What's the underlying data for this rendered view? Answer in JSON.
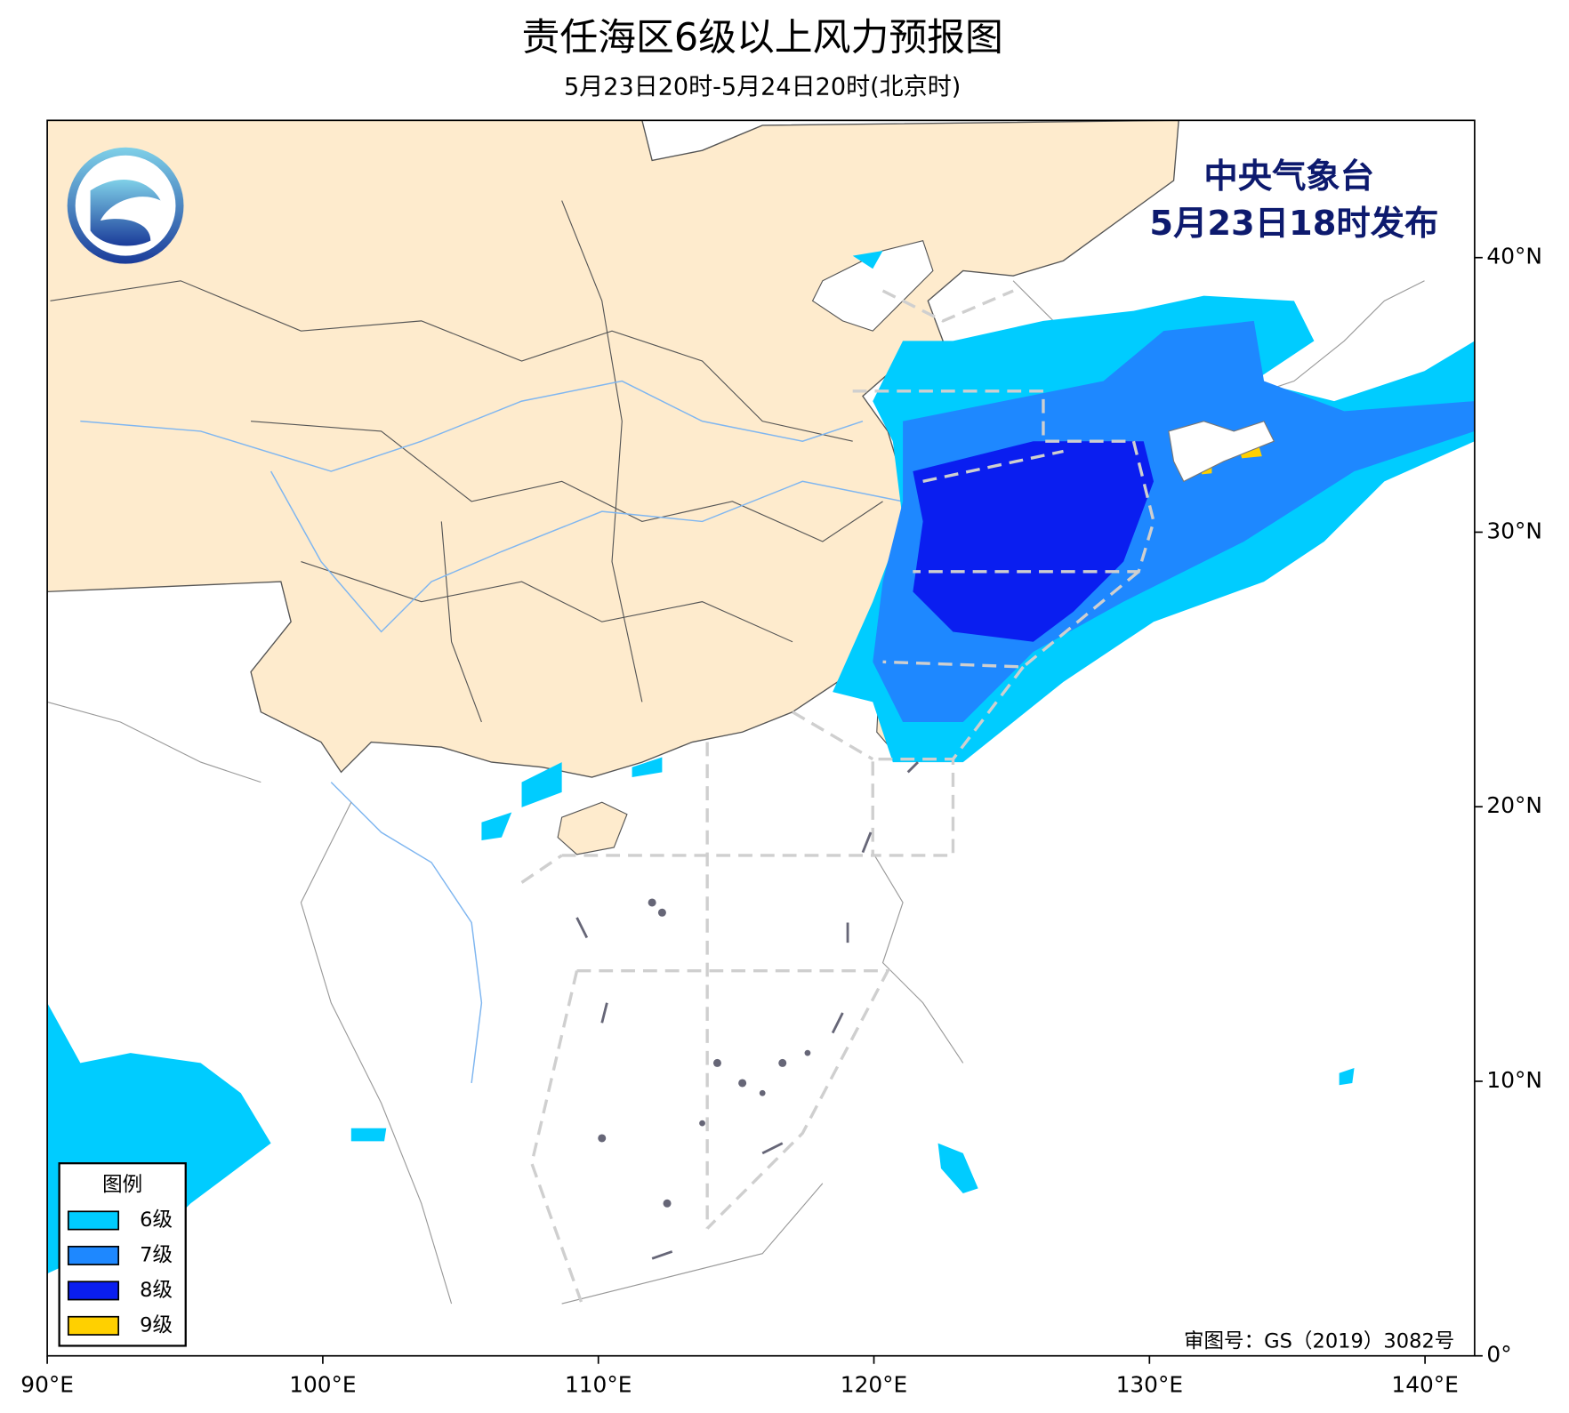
{
  "header": {
    "title": "责任海区6级以上风力预报图",
    "subtitle": "5月23日20时-5月24日20时(北京时)"
  },
  "issuer": {
    "agency": "中央气象台",
    "issued": "5月23日18时发布"
  },
  "approval": "审图号：GS（2019）3082号",
  "legend": {
    "title": "图例",
    "items": [
      {
        "label": "6级",
        "color": "#00ccff"
      },
      {
        "label": "7级",
        "color": "#1e88ff"
      },
      {
        "label": "8级",
        "color": "#0a1ef0"
      },
      {
        "label": "9级",
        "color": "#ffd000"
      }
    ]
  },
  "map": {
    "xlim": [
      90,
      141.8
    ],
    "ylim": [
      0,
      45
    ],
    "xticks": [
      {
        "value": 90,
        "label": "90°E"
      },
      {
        "value": 100,
        "label": "100°E"
      },
      {
        "value": 110,
        "label": "110°E"
      },
      {
        "value": 120,
        "label": "120°E"
      },
      {
        "value": 130,
        "label": "130°E"
      },
      {
        "value": 140,
        "label": "140°E"
      }
    ],
    "yticks": [
      {
        "value": 0,
        "label": "0°"
      },
      {
        "value": 10,
        "label": "10°N"
      },
      {
        "value": 20,
        "label": "20°N"
      },
      {
        "value": 30,
        "label": "30°N"
      },
      {
        "value": 40,
        "label": "40°N"
      }
    ]
  }
}
